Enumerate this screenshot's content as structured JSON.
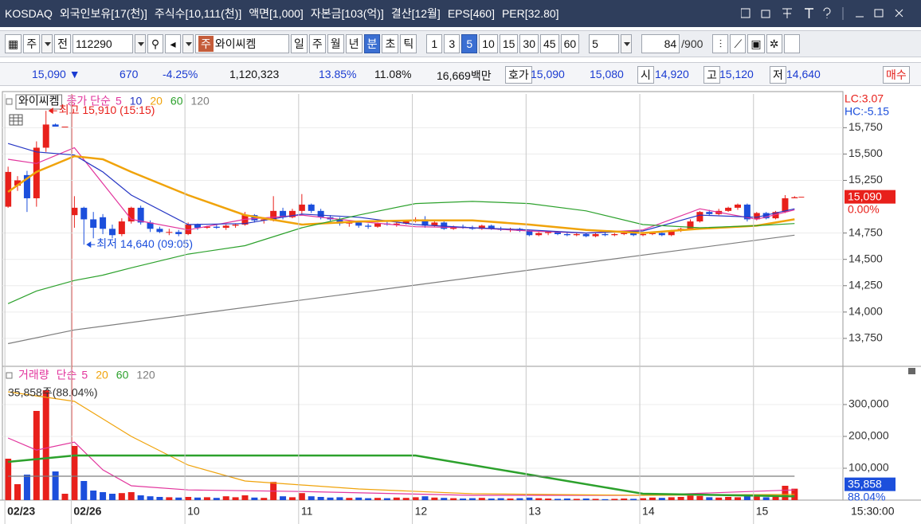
{
  "title_bar": {
    "items": [
      "KOSDAQ",
      "외국인보유[17(천)]",
      "주식수[10,111(천)]",
      "액면[1,000]",
      "자본금[103(억)]",
      "결산[12월]",
      "EPS[460]",
      "PER[32.80]"
    ]
  },
  "toolbar": {
    "market": "주",
    "kind": "전",
    "code": "112290",
    "stock_tag": "주",
    "stock_name": "와이씨켐",
    "periods": [
      "일",
      "주",
      "월",
      "년",
      "분",
      "초",
      "틱"
    ],
    "active_period": 4,
    "intervals": [
      1,
      3,
      5,
      10,
      15,
      30,
      45,
      60
    ],
    "active_interval": 5,
    "unit_select": 5,
    "count": 84,
    "max": "/900"
  },
  "quote_bar": {
    "price": "15,090 ▼",
    "change": "670",
    "change_pct": "-4.25%",
    "volume": "1,120,323",
    "ratio1": "13.85%",
    "ratio2": "11.08%",
    "amount": "16,669백만",
    "ask_label": "호가",
    "ask": "15,090",
    "bid": "15,080",
    "open_label": "시",
    "open": "14,920",
    "high_label": "고",
    "high": "15,120",
    "low_label": "저",
    "low": "14,640",
    "button": "매수"
  },
  "chart_data": [
    {
      "type": "candlestick",
      "title": "와이씨켐",
      "legend_label": "종가 단순",
      "up_color": "#e8201b",
      "down_color": "#1c4fdc",
      "open": [
        15000,
        15200,
        15300,
        15080,
        15560,
        15780,
        15760,
        14920,
        14990,
        14880,
        14900,
        14790,
        14740,
        14860,
        14990,
        14850,
        14790,
        14760,
        14760,
        14740,
        14830,
        14800,
        14810,
        14800,
        14820,
        14830,
        14920,
        14870,
        14870,
        14960,
        14900,
        14960,
        15020,
        14960,
        14900,
        14880,
        14840,
        14850,
        14820,
        14810,
        14840,
        14830,
        14840,
        14860,
        14880,
        14820,
        14850,
        14790,
        14810,
        14800,
        14790,
        14820,
        14790,
        14780,
        14790,
        14770,
        14730,
        14750,
        14760,
        14740,
        14730,
        14740,
        14720,
        14740,
        14730,
        14740,
        14750,
        14730,
        14740,
        14750,
        14730,
        14770,
        14790,
        14860,
        14950,
        14930,
        14960,
        14990,
        15020,
        14880,
        14940,
        14890,
        14950,
        15080
      ],
      "high": [
        15380,
        15290,
        15340,
        15620,
        15910,
        15790,
        15760,
        15100,
        15000,
        14950,
        14930,
        14830,
        14890,
        15000,
        15010,
        14870,
        14810,
        14790,
        14780,
        14850,
        14840,
        14820,
        14830,
        14830,
        14840,
        14950,
        14930,
        14900,
        15100,
        14990,
        14980,
        15120,
        15030,
        14980,
        14920,
        14900,
        14870,
        14860,
        14840,
        14850,
        14860,
        14850,
        14870,
        14900,
        14910,
        14860,
        14860,
        14820,
        14830,
        14820,
        14830,
        14830,
        14810,
        14800,
        14800,
        14780,
        14760,
        14770,
        14770,
        14760,
        14750,
        14750,
        14750,
        14760,
        14750,
        14760,
        14760,
        14760,
        14760,
        14770,
        14780,
        14800,
        14880,
        14960,
        14970,
        14980,
        15000,
        15030,
        15030,
        14950,
        14950,
        14960,
        15110,
        15100
      ],
      "low": [
        14990,
        15150,
        14950,
        15000,
        15520,
        15760,
        15760,
        14800,
        14640,
        14700,
        14740,
        14700,
        14720,
        14840,
        14830,
        14760,
        14750,
        14730,
        14720,
        14730,
        14780,
        14790,
        14790,
        14780,
        14800,
        14820,
        14850,
        14840,
        14860,
        14880,
        14890,
        14930,
        14940,
        14880,
        14860,
        14820,
        14810,
        14800,
        14790,
        14800,
        14820,
        14810,
        14830,
        14850,
        14800,
        14810,
        14780,
        14780,
        14790,
        14780,
        14780,
        14780,
        14770,
        14760,
        14760,
        14720,
        14720,
        14730,
        14730,
        14720,
        14720,
        14710,
        14710,
        14720,
        14720,
        14730,
        14720,
        14720,
        14730,
        14720,
        14720,
        14760,
        14780,
        14850,
        14920,
        14920,
        14950,
        14970,
        14860,
        14870,
        14880,
        14880,
        14940,
        15080
      ],
      "close": [
        15330,
        15250,
        15080,
        15560,
        15780,
        15760,
        15760,
        14990,
        14880,
        14800,
        14790,
        14730,
        14860,
        14990,
        14850,
        14790,
        14760,
        14760,
        14740,
        14830,
        14800,
        14810,
        14800,
        14820,
        14830,
        14920,
        14870,
        14880,
        14960,
        14900,
        14960,
        15020,
        14960,
        14900,
        14880,
        14840,
        14850,
        14820,
        14810,
        14840,
        14830,
        14840,
        14860,
        14880,
        14820,
        14850,
        14790,
        14810,
        14800,
        14790,
        14820,
        14790,
        14780,
        14790,
        14770,
        14730,
        14750,
        14760,
        14740,
        14730,
        14740,
        14720,
        14740,
        14730,
        14740,
        14750,
        14730,
        14740,
        14750,
        14730,
        14770,
        14790,
        14860,
        14950,
        14930,
        14960,
        14990,
        15020,
        14880,
        14940,
        14890,
        14950,
        15080,
        15090
      ],
      "series": [
        {
          "name": "5",
          "color": "#e2359d",
          "x": [
            0,
            3,
            7,
            10,
            13,
            19,
            25,
            31,
            37,
            43,
            49,
            55,
            61,
            67,
            73,
            79,
            83
          ],
          "values": [
            15450,
            15410,
            15560,
            15220,
            14880,
            14780,
            14880,
            14920,
            14860,
            14810,
            14800,
            14770,
            14750,
            14780,
            14980,
            14880,
            14970
          ]
        },
        {
          "name": "10",
          "color": "#2636c4",
          "x": [
            0,
            3,
            7,
            10,
            13,
            19,
            25,
            31,
            37,
            43,
            49,
            55,
            61,
            67,
            73,
            79,
            83
          ],
          "values": [
            15600,
            15520,
            15490,
            15330,
            15110,
            14830,
            14840,
            14930,
            14900,
            14830,
            14800,
            14780,
            14750,
            14770,
            14920,
            14900,
            14980
          ]
        },
        {
          "name": "20",
          "color": "#f0a30a",
          "x": [
            0,
            3,
            7,
            10,
            13,
            19,
            25,
            31,
            37,
            43,
            49,
            55,
            61,
            67,
            73,
            79,
            83
          ],
          "values": [
            15140,
            15330,
            15480,
            15450,
            15330,
            15110,
            14920,
            14830,
            14860,
            14870,
            14870,
            14830,
            14780,
            14750,
            14790,
            14820,
            14880
          ]
        },
        {
          "name": "60",
          "color": "#2ca12c",
          "x": [
            0,
            3,
            7,
            10,
            13,
            19,
            25,
            31,
            37,
            43,
            49,
            55,
            61,
            67,
            73,
            79,
            83
          ],
          "values": [
            14080,
            14200,
            14300,
            14350,
            14420,
            14550,
            14630,
            14800,
            14920,
            15030,
            15050,
            15030,
            14960,
            14830,
            14800,
            14820,
            14840
          ]
        },
        {
          "name": "120",
          "color": "#7d7d7d",
          "x": [
            0,
            7,
            83
          ],
          "values": [
            13700,
            13830,
            14730
          ]
        }
      ],
      "xlim": [
        -0.6,
        88.1
      ],
      "ylim": [
        13500,
        16070
      ],
      "yticks": [
        {
          "value": 13750,
          "label": "13,750"
        },
        {
          "value": 14000,
          "label": "14,000"
        },
        {
          "value": 14250,
          "label": "14,250"
        },
        {
          "value": 14500,
          "label": "14,500"
        },
        {
          "value": 14750,
          "label": "14,750"
        },
        {
          "value": 15250,
          "label": "15,250"
        },
        {
          "value": 15500,
          "label": "15,500"
        },
        {
          "value": 15750,
          "label": "15,750"
        }
      ],
      "grid": true,
      "max_label": {
        "text": "최고 15,910 (15:15)",
        "value": 15910
      },
      "min_label": {
        "text": "최저 14,640 (09:05)",
        "value": 14640
      },
      "lc": "LC:3.07",
      "hc": "HC:-5.15",
      "last_label": "15,090",
      "last_pct": "0.00%"
    },
    {
      "type": "bar",
      "title": "거래량",
      "legend_label": "단순",
      "categories": [
        "02/23",
        null,
        null,
        null,
        null,
        null,
        null,
        "02/26",
        null,
        null,
        null,
        null,
        null,
        null,
        null,
        null,
        null,
        null,
        null,
        "10",
        null,
        null,
        null,
        null,
        null,
        null,
        null,
        null,
        null,
        null,
        null,
        "11",
        null,
        null,
        null,
        null,
        null,
        null,
        null,
        null,
        null,
        null,
        null,
        "12",
        null,
        null,
        null,
        null,
        null,
        null,
        null,
        null,
        null,
        null,
        null,
        "13",
        null,
        null,
        null,
        null,
        null,
        null,
        null,
        null,
        null,
        null,
        null,
        "14",
        null,
        null,
        null,
        null,
        null,
        null,
        null,
        null,
        null,
        null,
        null,
        "15",
        null,
        null,
        null,
        null
      ],
      "values": [
        130000,
        50000,
        80000,
        280000,
        345000,
        90000,
        20000,
        170000,
        60000,
        30000,
        25000,
        20000,
        22000,
        25000,
        15000,
        12000,
        10000,
        9000,
        8000,
        10000,
        8000,
        9000,
        7000,
        12000,
        9000,
        15000,
        8000,
        7000,
        57000,
        12000,
        9000,
        22000,
        12000,
        10000,
        8000,
        9000,
        7000,
        8000,
        6000,
        7000,
        6000,
        8000,
        7000,
        9000,
        12000,
        8000,
        7000,
        6000,
        5000,
        6000,
        7000,
        5000,
        6000,
        5000,
        6000,
        8000,
        6000,
        5000,
        4000,
        5000,
        4000,
        5000,
        4000,
        3000,
        4000,
        5000,
        4000,
        6000,
        8000,
        7000,
        9000,
        10000,
        14000,
        13000,
        9000,
        8000,
        10000,
        9000,
        18000,
        12000,
        9000,
        10000,
        45000,
        35858
      ],
      "series": [
        {
          "name": "5",
          "color": "#e2359d",
          "x": [
            0,
            3,
            7,
            10,
            13,
            19,
            31,
            49,
            67,
            83
          ],
          "values": [
            195000,
            157000,
            182000,
            95000,
            45000,
            32000,
            27000,
            15000,
            15000,
            32000
          ]
        },
        {
          "name": "20",
          "color": "#f0a30a",
          "x": [
            0,
            7,
            13,
            19,
            25,
            37,
            49,
            67,
            83
          ],
          "values": [
            340000,
            310000,
            200000,
            110000,
            60000,
            35000,
            20000,
            15000,
            18000
          ]
        },
        {
          "name": "60",
          "color": "#2ca12c",
          "x": [
            0,
            7,
            43,
            55,
            67,
            83
          ],
          "values": [
            120000,
            140000,
            140000,
            80000,
            20000,
            12000
          ]
        },
        {
          "name": "120",
          "color": "#7d7d7d",
          "x": [
            0,
            83
          ],
          "values": [
            75000,
            75000
          ]
        }
      ],
      "xlim": [
        -0.6,
        88.1
      ],
      "ylim": [
        0,
        415000
      ],
      "yticks": [
        {
          "value": 100000,
          "label": "100,000"
        },
        {
          "value": 200000,
          "label": "200,000"
        },
        {
          "value": 300000,
          "label": "300,000"
        }
      ],
      "grid": true,
      "caption": "35,858주(88.04%)",
      "last_label": "35,858",
      "last_pct": "88.04%",
      "time": "15:30:00"
    }
  ]
}
